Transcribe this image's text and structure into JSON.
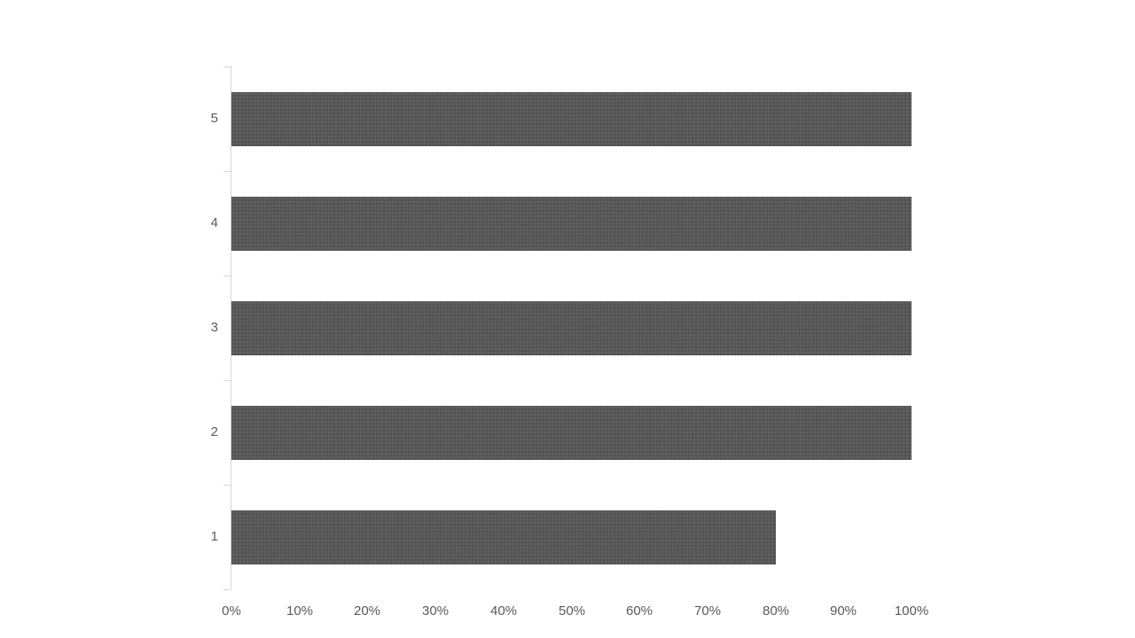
{
  "chart_data": {
    "type": "bar",
    "orientation": "horizontal",
    "title": "",
    "categories": [
      "1",
      "2",
      "3",
      "4",
      "5"
    ],
    "values": [
      80,
      100,
      100,
      100,
      100
    ],
    "value_unit": "percent",
    "xlabel": "",
    "ylabel": "",
    "xlim": [
      0,
      100
    ],
    "x_tick_step": 10,
    "x_tick_labels": [
      "0%",
      "10%",
      "20%",
      "30%",
      "40%",
      "50%",
      "60%",
      "70%",
      "80%",
      "90%",
      "100%"
    ],
    "grid": "off",
    "legend_position": "none",
    "bar_color": "#595959",
    "axis_color": "#d6d6d6",
    "tick_label_color": "#595959",
    "background_color": "#ffffff"
  }
}
